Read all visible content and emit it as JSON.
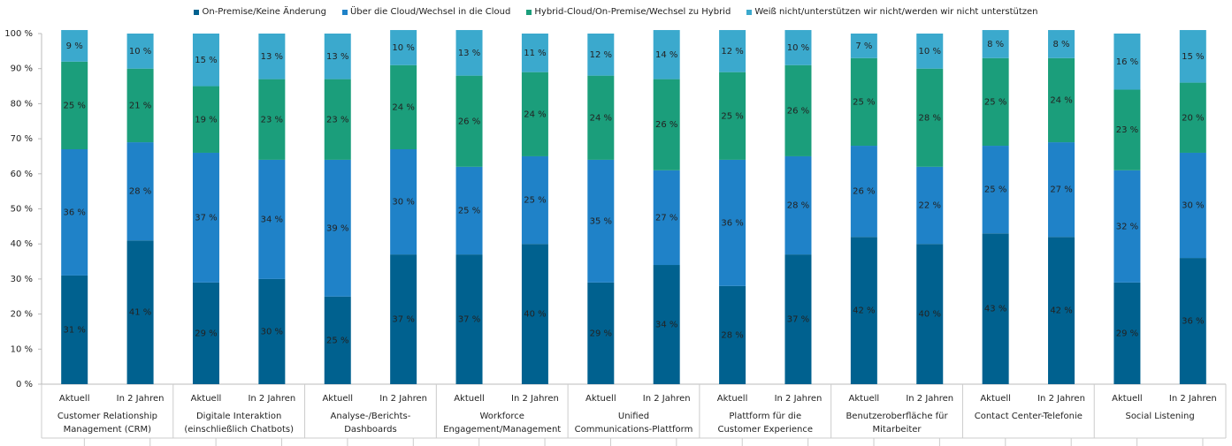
{
  "chart_data": {
    "type": "stacked_bar",
    "categories": [
      "Aktuell",
      "In 2 Jahren",
      "Aktuell",
      "In 2 Jahren",
      "Aktuell",
      "In 2 Jahren",
      "Aktuell",
      "In 2 Jahren",
      "Aktuell",
      "In 2 Jahren",
      "Aktuell",
      "In 2 Jahren",
      "Aktuell",
      "In 2 Jahren",
      "Aktuell",
      "In 2 Jahren",
      "Aktuell",
      "In 2 Jahren"
    ],
    "groups": [
      "Customer Relationship\nManagement (CRM)",
      "Digitale Interaktion\n(einschließlich Chatbots)",
      "Analyse-/Berichts-Dashboards",
      "Workforce\nEngagement/Management",
      "Unified\nCommunications-Plattform",
      "Plattform für die\nCustomer Experience",
      "Benutzeroberfläche für\nMitarbeiter",
      "Contact Center-Telefonie",
      "Social Listening"
    ],
    "series": [
      {
        "name": "On-Premise/Keine Änderung",
        "color": "#00618f",
        "values": [
          31,
          41,
          29,
          30,
          25,
          37,
          37,
          40,
          29,
          34,
          28,
          37,
          42,
          40,
          43,
          42,
          29,
          36
        ],
        "value_labels": [
          "31 %",
          "41 %",
          "29 %",
          "30 %",
          "25 %",
          "37 %",
          "37 %",
          "40 %",
          "29 %",
          "34 %",
          "28 %",
          "37 %",
          "42 %",
          "40 %",
          "43 %",
          "42 %",
          "29 %",
          "36 %"
        ]
      },
      {
        "name": "Über die Cloud/Wechsel in die Cloud",
        "color": "#1f82c8",
        "values": [
          36,
          28,
          37,
          34,
          39,
          30,
          25,
          25,
          35,
          27,
          36,
          28,
          26,
          22,
          25,
          27,
          32,
          30
        ],
        "value_labels": [
          "36 %",
          "28 %",
          "37 %",
          "34 %",
          "39 %",
          "30 %",
          "25 %",
          "25 %",
          "35 %",
          "27 %",
          "36 %",
          "28 %",
          "26 %",
          "22 %",
          "25 %",
          "27 %",
          "32 %",
          "30 %"
        ]
      },
      {
        "name": "Hybrid-Cloud/On-Premise/Wechsel zu Hybrid",
        "color": "#1b9e7b",
        "values": [
          25,
          21,
          19,
          23,
          23,
          24,
          26,
          24,
          24,
          26,
          25,
          26,
          25,
          28,
          25,
          24,
          23,
          20
        ],
        "value_labels": [
          "25 %",
          "21 %",
          "19 %",
          "23 %",
          "23 %",
          "24 %",
          "26 %",
          "24 %",
          "24 %",
          "26 %",
          "25 %",
          "26 %",
          "25 %",
          "28 %",
          "25 %",
          "24 %",
          "23 %",
          "20 %"
        ]
      },
      {
        "name": "Weiß nicht/unterstützen wir nicht/werden wir nicht unterstützen",
        "color": "#3ba9cd",
        "values": [
          9,
          10,
          15,
          13,
          13,
          10,
          13,
          11,
          12,
          14,
          12,
          10,
          7,
          10,
          8,
          8,
          16,
          15
        ],
        "value_labels": [
          "9 %",
          "10 %",
          "15 %",
          "13 %",
          "13 %",
          "10 %",
          "13 %",
          "11 %",
          "12 %",
          "14 %",
          "12 %",
          "10 %",
          "7 %",
          "10 %",
          "8 %",
          "8 %",
          "16 %",
          "15 %"
        ]
      }
    ],
    "ylim": [
      0,
      100
    ],
    "yticks": [
      {
        "value": 0,
        "label": "0 %"
      },
      {
        "value": 10,
        "label": "10 %"
      },
      {
        "value": 20,
        "label": "20 %"
      },
      {
        "value": 30,
        "label": "30 %"
      },
      {
        "value": 40,
        "label": "40 %"
      },
      {
        "value": 50,
        "label": "50 %"
      },
      {
        "value": 60,
        "label": "60 %"
      },
      {
        "value": 70,
        "label": "70 %"
      },
      {
        "value": 80,
        "label": "80 %"
      },
      {
        "value": 90,
        "label": "90 %"
      },
      {
        "value": 100,
        "label": "100 %"
      }
    ]
  }
}
